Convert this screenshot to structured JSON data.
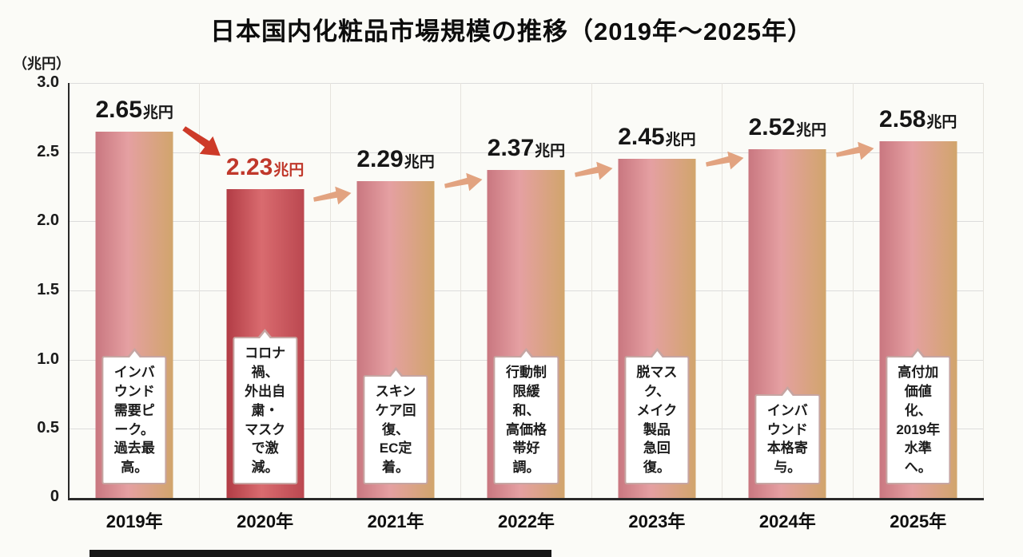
{
  "title": "日本国内化粧品市場規模の推移（2019年〜2025年）",
  "y_axis": {
    "unit": "（兆円）",
    "ticks": [
      "3.0",
      "2.5",
      "2.0",
      "1.5",
      "1.0",
      "0.5",
      "0"
    ]
  },
  "chart_data": {
    "type": "bar",
    "title": "日本国内化粧品市場規模の推移（2019年〜2025年）",
    "xlabel": "",
    "ylabel": "兆円",
    "ylim": [
      0,
      3.0
    ],
    "grid": true,
    "categories": [
      "2019年",
      "2020年",
      "2021年",
      "2022年",
      "2023年",
      "2024年",
      "2025年"
    ],
    "values": [
      2.65,
      2.23,
      2.29,
      2.37,
      2.45,
      2.52,
      2.58
    ],
    "value_labels": [
      "2.65兆円",
      "2.23兆円",
      "2.29兆円",
      "2.37兆円",
      "2.45兆円",
      "2.52兆円",
      "2.58兆円"
    ],
    "annotations": [
      "インバウンド需要ピーク。過去最高。",
      "コロナ禍、外出自粛・マスクで激減。",
      "スキンケア回復、EC定着。",
      "行動制限緩和、高価格帯好調。",
      "脱マスク、メイク製品急回復。",
      "インバウンド本格寄与。",
      "高付加価値化、2019年水準へ。"
    ],
    "trend_arrows": [
      "down",
      "up",
      "up",
      "up",
      "up",
      "up"
    ]
  },
  "bars": [
    {
      "year": "2019年",
      "value_label": "2.65",
      "unit": "兆円",
      "note": "インバウンド\n需要ピーク。\n過去最高。",
      "highlight": false
    },
    {
      "year": "2020年",
      "value_label": "2.23",
      "unit": "兆円",
      "note": "コロナ禍、\n外出自粛・\nマスクで激減。",
      "highlight": true
    },
    {
      "year": "2021年",
      "value_label": "2.29",
      "unit": "兆円",
      "note": "スキンケア回復、\nEC定着。",
      "highlight": false
    },
    {
      "year": "2022年",
      "value_label": "2.37",
      "unit": "兆円",
      "note": "行動制限緩和、\n高価格帯好調。",
      "highlight": false
    },
    {
      "year": "2023年",
      "value_label": "2.45",
      "unit": "兆円",
      "note": "脱マスク、\nメイク製品\n急回復。",
      "highlight": false
    },
    {
      "year": "2024年",
      "value_label": "2.52",
      "unit": "兆円",
      "note": "インバウンド\n本格寄与。",
      "highlight": false
    },
    {
      "year": "2025年",
      "value_label": "2.58",
      "unit": "兆円",
      "note": "高付加価値化、\n2019年水準へ。",
      "highlight": false
    }
  ],
  "colors": {
    "bar_gradient": [
      "#c97780",
      "#e5a0a2",
      "#d1a56c"
    ],
    "bar_highlight_gradient": [
      "#b23c45",
      "#d96b6f",
      "#bb4850"
    ],
    "decline_arrow": "#cd3a28",
    "growth_arrow": "#e2a380",
    "decline_value_text": "#c0382b",
    "value_text": "#161616",
    "note_border": "#c6a5a2",
    "axis": "#2a2a2a",
    "grid": "#dcdcdc"
  }
}
